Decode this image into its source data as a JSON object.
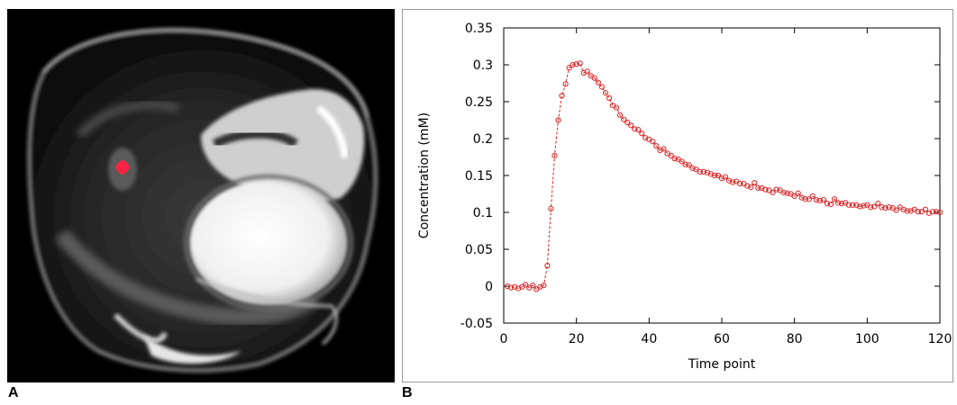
{
  "panels": {
    "a_label": "A",
    "b_label": "B"
  },
  "colors": {
    "series": "#dd2222",
    "roi_marker": "#ff2244",
    "frame": "#888888"
  },
  "image_panel": {
    "description_icon": "mri-axial-slice-image",
    "roi_color": "#ff2244"
  },
  "chart_data": {
    "type": "line",
    "title": "",
    "xlabel": "Time point",
    "ylabel": "Concentration (mM)",
    "xlim": [
      0,
      120
    ],
    "ylim": [
      -0.05,
      0.35
    ],
    "x_ticks": [
      0,
      20,
      40,
      60,
      80,
      100,
      120
    ],
    "y_ticks": [
      -0.05,
      0,
      0.05,
      0.1,
      0.15,
      0.2,
      0.25,
      0.3,
      0.35
    ],
    "y_tick_labels": [
      "-0.05",
      "0",
      "0.05",
      "0.1",
      "0.15",
      "0.2",
      "0.25",
      "0.3",
      "0.35"
    ],
    "grid": false,
    "marker": "open-circle",
    "line_style": "dashed",
    "series": [
      {
        "x": [
          1,
          2,
          3,
          4,
          5,
          6,
          7,
          8,
          9,
          10,
          11,
          12,
          13,
          14,
          15,
          16,
          17,
          18,
          19,
          20,
          21,
          22,
          23,
          24,
          25,
          26,
          27,
          28,
          29,
          30,
          31,
          32,
          33,
          34,
          35,
          36,
          37,
          38,
          39,
          40,
          41,
          42,
          43,
          44,
          45,
          46,
          47,
          48,
          49,
          50,
          51,
          52,
          53,
          54,
          55,
          56,
          57,
          58,
          59,
          60,
          61,
          62,
          63,
          64,
          65,
          66,
          67,
          68,
          69,
          70,
          71,
          72,
          73,
          74,
          75,
          76,
          77,
          78,
          79,
          80,
          81,
          82,
          83,
          84,
          85,
          86,
          87,
          88,
          89,
          90,
          91,
          92,
          93,
          94,
          95,
          96,
          97,
          98,
          99,
          100,
          101,
          102,
          103,
          104,
          105,
          106,
          107,
          108,
          109,
          110,
          111,
          112,
          113,
          114,
          115,
          116,
          117,
          118,
          119,
          120
        ],
        "values": [
          0.0,
          -0.002,
          -0.001,
          -0.003,
          -0.001,
          0.002,
          -0.002,
          0.001,
          -0.004,
          -0.001,
          0.001,
          0.028,
          0.105,
          0.177,
          0.225,
          0.258,
          0.274,
          0.296,
          0.3,
          0.301,
          0.302,
          0.289,
          0.291,
          0.285,
          0.282,
          0.276,
          0.27,
          0.262,
          0.255,
          0.245,
          0.242,
          0.232,
          0.226,
          0.222,
          0.218,
          0.213,
          0.212,
          0.207,
          0.201,
          0.199,
          0.196,
          0.19,
          0.184,
          0.186,
          0.18,
          0.177,
          0.173,
          0.172,
          0.169,
          0.165,
          0.164,
          0.16,
          0.158,
          0.155,
          0.155,
          0.154,
          0.152,
          0.15,
          0.15,
          0.146,
          0.148,
          0.143,
          0.141,
          0.142,
          0.139,
          0.139,
          0.136,
          0.134,
          0.14,
          0.133,
          0.133,
          0.131,
          0.13,
          0.127,
          0.131,
          0.13,
          0.127,
          0.126,
          0.125,
          0.122,
          0.126,
          0.12,
          0.118,
          0.118,
          0.122,
          0.117,
          0.116,
          0.117,
          0.112,
          0.111,
          0.118,
          0.113,
          0.112,
          0.113,
          0.11,
          0.11,
          0.11,
          0.108,
          0.109,
          0.11,
          0.107,
          0.108,
          0.112,
          0.107,
          0.106,
          0.107,
          0.106,
          0.103,
          0.107,
          0.104,
          0.102,
          0.102,
          0.104,
          0.101,
          0.101,
          0.104,
          0.099,
          0.101,
          0.101,
          0.1
        ]
      }
    ]
  }
}
